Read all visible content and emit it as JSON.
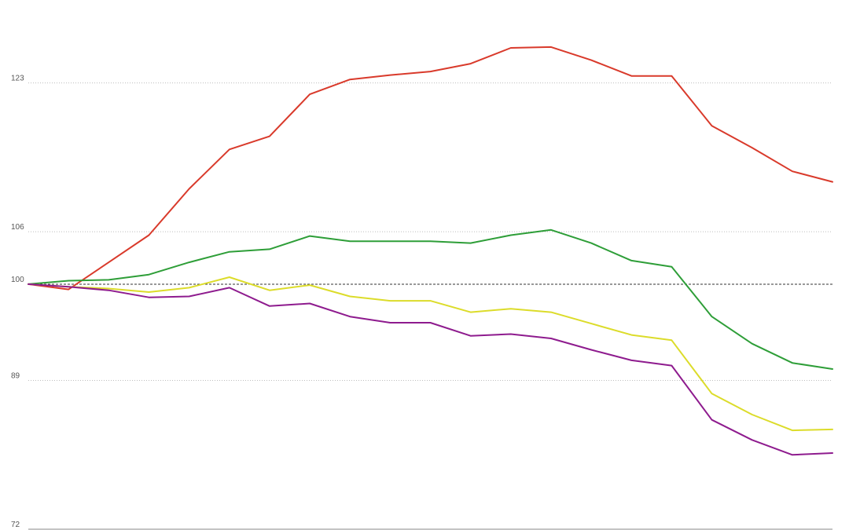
{
  "chart_data": {
    "type": "line",
    "title": "",
    "xlabel": "",
    "ylabel": "",
    "ylim": [
      72,
      130
    ],
    "y_ticks": [
      72,
      89,
      100,
      106,
      123
    ],
    "y_tick_labels": [
      "72",
      "89",
      "100",
      "106",
      "123"
    ],
    "baseline": 100,
    "grid": true,
    "x": [
      0,
      1,
      2,
      3,
      4,
      5,
      6,
      7,
      8,
      9,
      10,
      11,
      12,
      13,
      14,
      15,
      16,
      17,
      18,
      19,
      20
    ],
    "series": [
      {
        "color": "#d93a2b",
        "values": [
          100,
          99.4,
          102.5,
          105.6,
          110.9,
          115.4,
          116.9,
          121.7,
          123.4,
          123.9,
          124.3,
          125.2,
          127.0,
          127.1,
          125.6,
          123.8,
          123.8,
          118.1,
          115.6,
          112.9,
          111.7
        ]
      },
      {
        "color": "#2e9e38",
        "values": [
          100,
          100.4,
          100.5,
          101.1,
          102.5,
          103.7,
          104.0,
          105.5,
          104.9,
          104.9,
          104.9,
          104.7,
          105.6,
          106.2,
          104.7,
          102.7,
          102.0,
          96.3,
          93.2,
          91.0,
          90.3
        ]
      },
      {
        "color": "#dcdc2a",
        "values": [
          100,
          99.7,
          99.5,
          99.1,
          99.6,
          100.8,
          99.3,
          99.9,
          98.6,
          98.1,
          98.1,
          96.8,
          97.2,
          96.8,
          95.5,
          94.2,
          93.6,
          87.5,
          85.1,
          83.3,
          83.4
        ]
      },
      {
        "color": "#8e1b8e",
        "values": [
          100,
          99.7,
          99.3,
          98.5,
          98.6,
          99.6,
          97.5,
          97.8,
          96.3,
          95.6,
          95.6,
          94.1,
          94.3,
          93.8,
          92.5,
          91.3,
          90.7,
          84.5,
          82.2,
          80.5,
          80.7
        ]
      }
    ]
  }
}
